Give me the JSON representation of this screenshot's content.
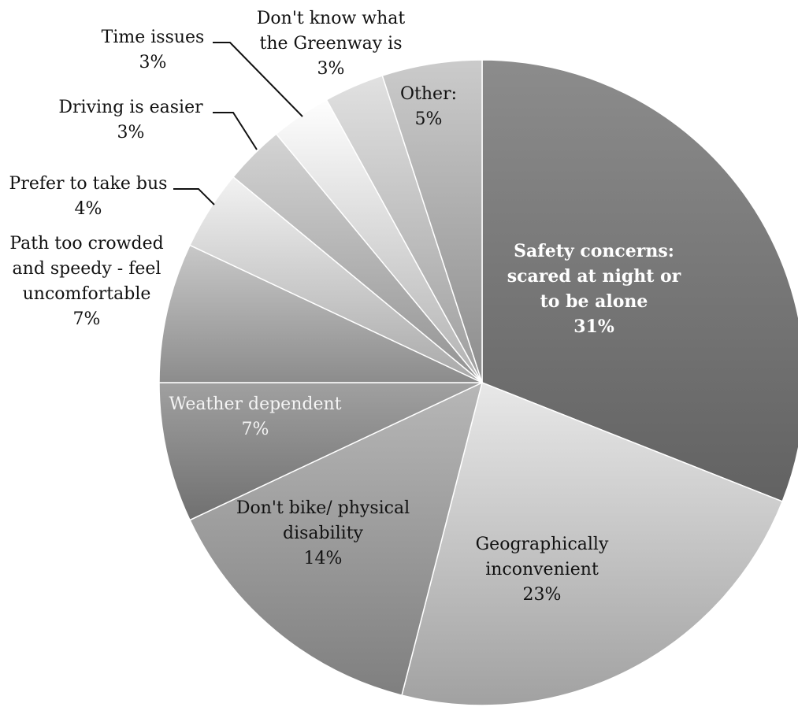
{
  "chart_data": {
    "type": "pie",
    "slices": [
      {
        "lines": [
          "Safety concerns:",
          "scared at night or",
          "to be alone"
        ],
        "value": 31,
        "pct": "31%"
      },
      {
        "lines": [
          "Geographically",
          "inconvenient"
        ],
        "value": 23,
        "pct": "23%"
      },
      {
        "lines": [
          "Don't bike/ physical",
          "disability"
        ],
        "value": 14,
        "pct": "14%"
      },
      {
        "lines": [
          "Weather dependent"
        ],
        "value": 7,
        "pct": "7%"
      },
      {
        "lines": [
          "Path too crowded",
          "and speedy -  feel",
          "uncomfortable"
        ],
        "value": 7,
        "pct": "7%"
      },
      {
        "lines": [
          "Prefer to take bus"
        ],
        "value": 4,
        "pct": "4%"
      },
      {
        "lines": [
          "Driving is easier"
        ],
        "value": 3,
        "pct": "3%"
      },
      {
        "lines": [
          "Time issues"
        ],
        "value": 3,
        "pct": "3%"
      },
      {
        "lines": [
          "Don't know what",
          "the Greenway is"
        ],
        "value": 3,
        "pct": "3%"
      },
      {
        "lines": [
          "Other:"
        ],
        "value": 5,
        "pct": "5%"
      }
    ],
    "start_angle": "12 o'clock",
    "direction": "clockwise",
    "legend": "none",
    "colors": [
      "#7d7d7d",
      "#cfcfcf",
      "#a3a3a3",
      "#8f8f8f",
      "#b3b3b3",
      "#d8d8d8",
      "#bdbdbd",
      "#e3e3e3",
      "#c9c9c9",
      "#b5b5b5"
    ]
  }
}
